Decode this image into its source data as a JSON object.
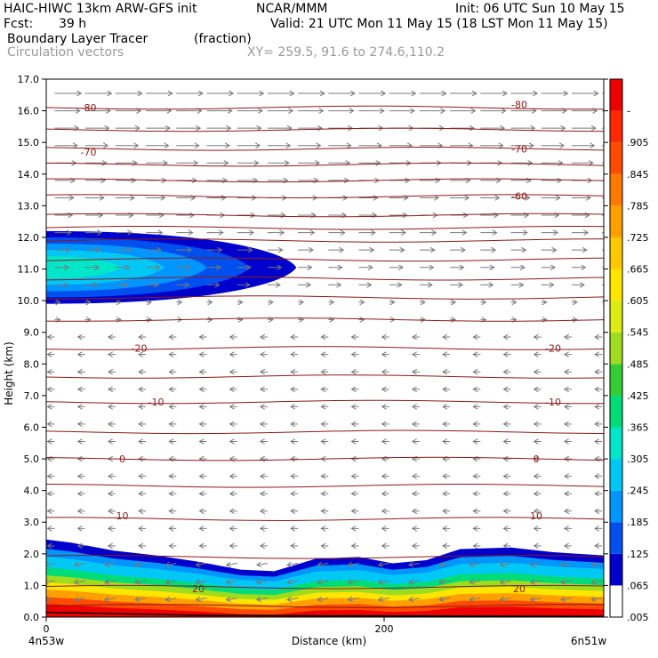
{
  "header": {
    "model": "HAIC-HIWC 13km ARW-GFS init",
    "org": "NCAR/MMM",
    "init": "Init: 06 UTC Sun 10 May 15",
    "fcst_label": "Fcst:",
    "fcst_value": "39 h",
    "valid": "Valid: 21 UTC Mon 11 May 15 (18 LST Mon 11 May 15)",
    "field_name": "Boundary Layer Tracer",
    "field_units": "(fraction)",
    "overlay_name": "Circulation vectors",
    "xy_range": "XY= 259.5, 91.6 to 274.6,110.2"
  },
  "chart_data": {
    "type": "heatmap",
    "description_of_axes": "vertical cross section",
    "xlabel": "Distance (km)",
    "ylabel": "Height (km)",
    "xlim": [
      0,
      330
    ],
    "ylim": [
      0,
      17
    ],
    "x_ticks": [
      0,
      200
    ],
    "y_ticks": [
      0.0,
      1.0,
      2.0,
      3.0,
      4.0,
      5.0,
      6.0,
      7.0,
      8.0,
      9.0,
      10.0,
      11.0,
      12.0,
      13.0,
      14.0,
      15.0,
      16.0,
      17.0
    ],
    "x_endpoint_labels": [
      "4n53w",
      "6n51w"
    ],
    "colorbar": {
      "labels": [
        ".005",
        ".065",
        ".125",
        ".185",
        ".245",
        ".305",
        ".365",
        ".425",
        ".485",
        ".545",
        ".605",
        ".665",
        ".725",
        ".785",
        ".845",
        ".905",
        "-"
      ],
      "colors": [
        "#ffffff",
        "#0000cd",
        "#0050f0",
        "#0096ff",
        "#00c8f5",
        "#00e6c8",
        "#00dc78",
        "#32cd32",
        "#a0dc1e",
        "#dceb14",
        "#ffe600",
        "#ffc800",
        "#ffa000",
        "#ff7800",
        "#ff4b00",
        "#ff2800",
        "#ee0000"
      ]
    },
    "temperature_contour_labels": [
      {
        "label": "-80",
        "x": 25,
        "y": 16.1
      },
      {
        "label": "-80",
        "x": 280,
        "y": 16.2
      },
      {
        "label": "-70",
        "x": 25,
        "y": 14.7
      },
      {
        "label": "-70",
        "x": 280,
        "y": 14.8
      },
      {
        "label": "-60",
        "x": 280,
        "y": 13.3
      },
      {
        "label": "-20",
        "x": 55,
        "y": 8.5
      },
      {
        "label": "-20",
        "x": 300,
        "y": 8.5
      },
      {
        "label": "-10",
        "x": 65,
        "y": 6.8
      },
      {
        "label": "-10",
        "x": 300,
        "y": 6.8
      },
      {
        "label": "0",
        "x": 45,
        "y": 5.0
      },
      {
        "label": "0",
        "x": 290,
        "y": 5.0
      },
      {
        "label": "10",
        "x": 45,
        "y": 3.2
      },
      {
        "label": "10",
        "x": 290,
        "y": 3.2
      },
      {
        "label": "20",
        "x": 90,
        "y": 0.9
      },
      {
        "label": "20",
        "x": 280,
        "y": 0.9
      }
    ],
    "isotherm_heights_km": [
      0.35,
      0.95,
      1.9,
      3.1,
      4.15,
      5.0,
      5.85,
      6.8,
      7.6,
      8.5,
      9.4,
      10.1,
      10.7,
      11.3,
      11.9,
      12.3,
      12.7,
      13.3,
      13.8,
      14.3,
      14.8,
      15.4,
      16.1
    ]
  }
}
